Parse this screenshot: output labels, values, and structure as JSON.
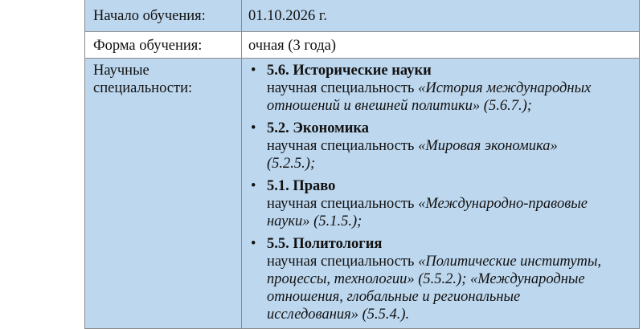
{
  "rows": {
    "start": {
      "label": "Начало обучения:",
      "value": "01.10.2026 г."
    },
    "form": {
      "label": "Форма обучения:",
      "value": "очная (3 года)"
    },
    "specialties": {
      "label": "Научные специальности:",
      "items": [
        {
          "title": "5.6. Исторические науки",
          "prefix": "научная специальность ",
          "names": "«История международных отношений и внешней политики» (5.6.7.);"
        },
        {
          "title": "5.2. Экономика",
          "prefix": "научная специальность ",
          "names": "«Мировая экономика» (5.2.5.);"
        },
        {
          "title": "5.1. Право",
          "prefix": "научная специальность ",
          "names": "«Международно-правовые науки» (5.1.5.);"
        },
        {
          "title": "5.5. Политология",
          "prefix": "научная специальность ",
          "names": "«Политические институты, процессы, технологии» (5.5.2.); «Международные отношения, глобальные и региональные исследования» (5.5.4.)."
        }
      ]
    }
  },
  "colors": {
    "highlight": "#bdd7ee",
    "border": "#8a8a8a"
  }
}
